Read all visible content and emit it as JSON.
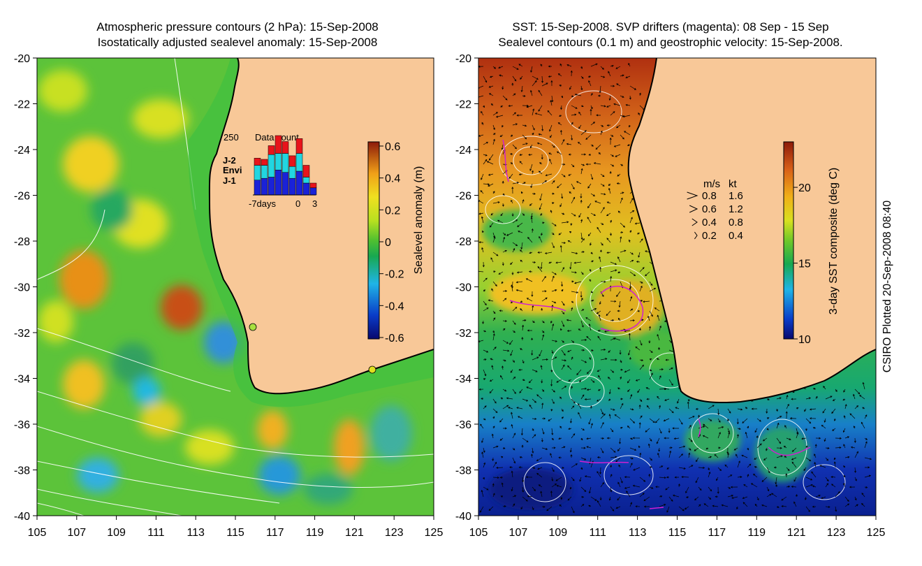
{
  "left_panel": {
    "title_line1": "Atmospheric pressure contours (2 hPa): 15-Sep-2008",
    "title_line2": "Isostatically adjusted sealevel anomaly: 15-Sep-2008",
    "colorbar": {
      "label": "Sealevel anomaly (m)",
      "ticks": [
        "0.6",
        "0.4",
        "0.2",
        "0",
        "-0.2",
        "-0.4",
        "-0.6"
      ],
      "min": -0.6,
      "max": 0.6
    },
    "inset": {
      "title": "Data count",
      "ymax_label": "250",
      "legend": [
        "J-2",
        "Envi",
        "J-1"
      ],
      "legend_colors": [
        "#e8141b",
        "#22d6e0",
        "#1a22d8"
      ],
      "x_labels": [
        "-7days",
        "0",
        "3"
      ],
      "bars": {
        "j1": [
          0.25,
          0.28,
          0.3,
          0.42,
          0.38,
          0.28,
          0.4,
          0.2,
          0.12
        ],
        "envi": [
          0.25,
          0.22,
          0.38,
          0.28,
          0.32,
          0.2,
          0.3,
          0.1,
          0.0
        ],
        "j2": [
          0.12,
          0.1,
          0.15,
          0.3,
          0.2,
          0.18,
          0.25,
          0.2,
          0.08
        ]
      }
    }
  },
  "right_panel": {
    "title_line1": "SST: 15-Sep-2008. SVP drifters (magenta): 08 Sep - 15 Sep",
    "title_line2": "Sealevel contours (0.1 m) and geostrophic velocity: 15-Sep-2008.",
    "colorbar": {
      "label": "3-day SST composite (deg C)",
      "ticks": [
        "20",
        "15",
        "10"
      ],
      "min": 10,
      "max": 23
    },
    "velocity_legend": {
      "header_ms": "m/s",
      "header_kt": "kt",
      "rows": [
        {
          "ms": "0.8",
          "kt": "1.6"
        },
        {
          "ms": "0.6",
          "kt": "1.2"
        },
        {
          "ms": "0.4",
          "kt": "0.8"
        },
        {
          "ms": "0.2",
          "kt": "0.4"
        }
      ]
    }
  },
  "axes": {
    "lat_labels": [
      "-20",
      "-22",
      "-24",
      "-26",
      "-28",
      "-30",
      "-32",
      "-34",
      "-36",
      "-38",
      "-40"
    ],
    "lon_labels": [
      "105",
      "107",
      "109",
      "111",
      "113",
      "115",
      "117",
      "119",
      "121",
      "123",
      "125"
    ]
  },
  "credit": "CSIRO Plotted 20-Sep-2008 08:40",
  "colors": {
    "land": "#f8c898",
    "coast": "#000000",
    "drifter": "#d020d0"
  }
}
